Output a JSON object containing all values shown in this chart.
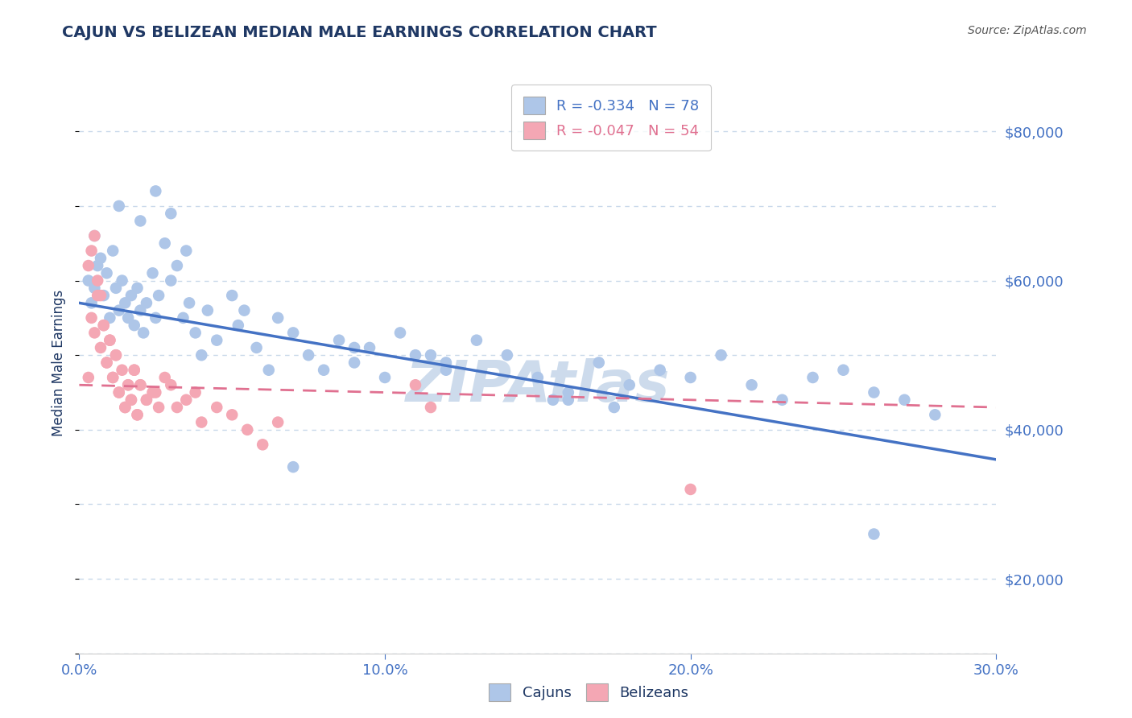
{
  "title": "CAJUN VS BELIZEAN MEDIAN MALE EARNINGS CORRELATION CHART",
  "source_text": "Source: ZipAtlas.com",
  "ylabel": "Median Male Earnings",
  "xlim": [
    0.0,
    0.3
  ],
  "ylim": [
    10000,
    88000
  ],
  "xtick_labels": [
    "0.0%",
    "10.0%",
    "20.0%",
    "30.0%"
  ],
  "xtick_values": [
    0.0,
    0.1,
    0.2,
    0.3
  ],
  "ytick_values": [
    20000,
    40000,
    60000,
    80000
  ],
  "ytick_labels": [
    "$20,000",
    "$40,000",
    "$60,000",
    "$80,000"
  ],
  "cajun_R": -0.334,
  "cajun_N": 78,
  "belizean_R": -0.047,
  "belizean_N": 54,
  "cajun_color": "#aec6e8",
  "cajun_line_color": "#4472c4",
  "belizean_color": "#f4a7b4",
  "belizean_line_color": "#e07090",
  "title_color": "#1f3864",
  "axis_label_color": "#1f3864",
  "tick_color": "#4472c4",
  "grid_color": "#c8d8ea",
  "watermark_color": "#c8d8ea",
  "background_color": "#ffffff",
  "cajun_line_y0": 57000,
  "cajun_line_y1": 36000,
  "belizean_line_y0": 46000,
  "belizean_line_y1": 43000,
  "cajun_x": [
    0.003,
    0.004,
    0.005,
    0.006,
    0.007,
    0.008,
    0.009,
    0.01,
    0.011,
    0.012,
    0.013,
    0.014,
    0.015,
    0.016,
    0.017,
    0.018,
    0.019,
    0.02,
    0.021,
    0.022,
    0.024,
    0.025,
    0.026,
    0.028,
    0.03,
    0.032,
    0.034,
    0.036,
    0.038,
    0.04,
    0.042,
    0.045,
    0.05,
    0.052,
    0.054,
    0.058,
    0.062,
    0.065,
    0.07,
    0.075,
    0.08,
    0.085,
    0.09,
    0.095,
    0.1,
    0.105,
    0.11,
    0.12,
    0.13,
    0.14,
    0.15,
    0.16,
    0.17,
    0.18,
    0.19,
    0.2,
    0.21,
    0.22,
    0.23,
    0.24,
    0.25,
    0.26,
    0.27,
    0.28,
    0.005,
    0.013,
    0.02,
    0.025,
    0.03,
    0.035,
    0.115,
    0.175,
    0.155,
    0.09,
    0.07,
    0.12,
    0.16,
    0.26
  ],
  "cajun_y": [
    60000,
    57000,
    59000,
    62000,
    63000,
    58000,
    61000,
    55000,
    64000,
    59000,
    56000,
    60000,
    57000,
    55000,
    58000,
    54000,
    59000,
    56000,
    53000,
    57000,
    61000,
    55000,
    58000,
    65000,
    60000,
    62000,
    55000,
    57000,
    53000,
    50000,
    56000,
    52000,
    58000,
    54000,
    56000,
    51000,
    48000,
    55000,
    53000,
    50000,
    48000,
    52000,
    49000,
    51000,
    47000,
    53000,
    50000,
    48000,
    52000,
    50000,
    47000,
    44000,
    49000,
    46000,
    48000,
    47000,
    50000,
    46000,
    44000,
    47000,
    48000,
    45000,
    44000,
    42000,
    66000,
    70000,
    68000,
    72000,
    69000,
    64000,
    50000,
    43000,
    44000,
    51000,
    35000,
    49000,
    45000,
    26000
  ],
  "belizean_x": [
    0.003,
    0.004,
    0.005,
    0.006,
    0.007,
    0.008,
    0.009,
    0.01,
    0.011,
    0.012,
    0.013,
    0.014,
    0.015,
    0.016,
    0.017,
    0.018,
    0.019,
    0.02,
    0.022,
    0.024,
    0.026,
    0.028,
    0.03,
    0.032,
    0.035,
    0.038,
    0.04,
    0.045,
    0.05,
    0.055,
    0.06,
    0.065,
    0.003,
    0.004,
    0.005,
    0.006,
    0.007,
    0.008,
    0.009,
    0.01,
    0.011,
    0.012,
    0.013,
    0.015,
    0.016,
    0.017,
    0.018,
    0.019,
    0.02,
    0.022,
    0.025,
    0.11,
    0.115,
    0.2
  ],
  "belizean_y": [
    47000,
    55000,
    53000,
    58000,
    51000,
    54000,
    49000,
    52000,
    47000,
    50000,
    45000,
    48000,
    43000,
    46000,
    44000,
    48000,
    42000,
    46000,
    44000,
    45000,
    43000,
    47000,
    46000,
    43000,
    44000,
    45000,
    41000,
    43000,
    42000,
    40000,
    38000,
    41000,
    62000,
    64000,
    66000,
    60000,
    58000,
    54000,
    49000,
    52000,
    47000,
    50000,
    45000,
    43000,
    46000,
    44000,
    48000,
    42000,
    46000,
    44000,
    45000,
    46000,
    43000,
    32000
  ]
}
